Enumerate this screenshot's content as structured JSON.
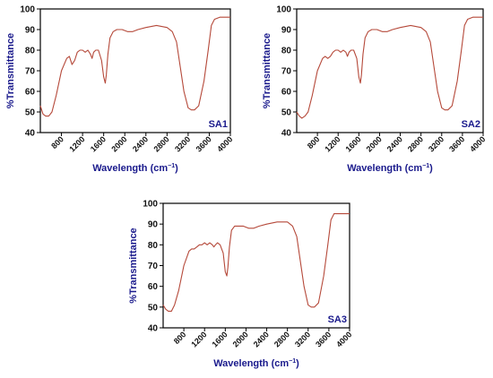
{
  "colors": {
    "line": "#b5493a",
    "label": "#1a1a8c",
    "axis": "#000000"
  },
  "chart_data": [
    {
      "type": "line",
      "label": "SA1",
      "xlabel": "Wavelength (cm",
      "xlabel_sup": "−1",
      "xlabel_close": ")",
      "ylabel": "%Transmittance",
      "xlim": [
        400,
        4000
      ],
      "ylim": [
        40,
        100
      ],
      "xticks": [
        800,
        1200,
        1600,
        2000,
        2400,
        2800,
        3200,
        3600,
        4000
      ],
      "yticks": [
        40,
        50,
        60,
        70,
        80,
        90,
        100
      ],
      "x": [
        400,
        450,
        500,
        560,
        620,
        700,
        800,
        900,
        950,
        1000,
        1050,
        1100,
        1150,
        1200,
        1250,
        1300,
        1350,
        1380,
        1410,
        1450,
        1500,
        1560,
        1600,
        1630,
        1650,
        1680,
        1720,
        1780,
        1850,
        1950,
        2050,
        2150,
        2250,
        2400,
        2600,
        2800,
        2900,
        2980,
        3050,
        3120,
        3200,
        3260,
        3320,
        3400,
        3500,
        3580,
        3640,
        3700,
        3800,
        3900,
        4000
      ],
      "y": [
        53,
        49,
        48,
        48,
        50,
        58,
        70,
        76,
        77,
        73,
        75,
        79,
        80,
        80,
        79,
        80,
        78,
        76,
        79,
        80,
        80,
        75,
        67,
        64,
        68,
        78,
        86,
        89,
        90,
        90,
        89,
        89,
        90,
        91,
        92,
        91,
        89,
        84,
        72,
        60,
        52,
        51,
        51,
        53,
        65,
        80,
        92,
        95,
        96,
        96,
        96
      ]
    },
    {
      "type": "line",
      "label": "SA2",
      "xlabel": "Wavelength (cm",
      "xlabel_sup": "−1",
      "xlabel_close": ")",
      "ylabel": "%Transmittance",
      "xlim": [
        400,
        4000
      ],
      "ylim": [
        40,
        100
      ],
      "xticks": [
        800,
        1200,
        1600,
        2000,
        2400,
        2800,
        3200,
        3600,
        4000
      ],
      "yticks": [
        40,
        50,
        60,
        70,
        80,
        90,
        100
      ],
      "x": [
        400,
        450,
        500,
        560,
        620,
        700,
        800,
        900,
        950,
        1000,
        1050,
        1100,
        1150,
        1200,
        1250,
        1300,
        1350,
        1380,
        1410,
        1450,
        1500,
        1560,
        1600,
        1630,
        1650,
        1680,
        1720,
        1780,
        1850,
        1950,
        2050,
        2150,
        2250,
        2400,
        2600,
        2800,
        2900,
        2980,
        3050,
        3120,
        3200,
        3260,
        3320,
        3400,
        3500,
        3580,
        3640,
        3700,
        3800,
        3900,
        4000
      ],
      "y": [
        50,
        48,
        47,
        48,
        50,
        58,
        70,
        76,
        77,
        76,
        77,
        79,
        80,
        80,
        79,
        80,
        79,
        77,
        79,
        80,
        80,
        76,
        67,
        64,
        68,
        78,
        86,
        89,
        90,
        90,
        89,
        89,
        90,
        91,
        92,
        91,
        89,
        84,
        72,
        60,
        52,
        51,
        51,
        53,
        65,
        80,
        92,
        95,
        96,
        96,
        96
      ]
    },
    {
      "type": "line",
      "label": "SA3",
      "xlabel": "Wavelength (cm",
      "xlabel_sup": "−1",
      "xlabel_close": ")",
      "ylabel": "%Transmittance",
      "xlim": [
        400,
        4000
      ],
      "ylim": [
        40,
        100
      ],
      "xticks": [
        800,
        1200,
        1600,
        2000,
        2400,
        2800,
        3200,
        3600,
        4000
      ],
      "yticks": [
        40,
        50,
        60,
        70,
        80,
        90,
        100
      ],
      "x": [
        400,
        450,
        500,
        560,
        620,
        700,
        800,
        900,
        950,
        1000,
        1050,
        1100,
        1150,
        1200,
        1250,
        1300,
        1350,
        1380,
        1410,
        1450,
        1500,
        1560,
        1600,
        1630,
        1650,
        1680,
        1720,
        1780,
        1850,
        1950,
        2050,
        2150,
        2250,
        2400,
        2600,
        2800,
        2900,
        2980,
        3050,
        3120,
        3200,
        3260,
        3320,
        3400,
        3500,
        3580,
        3640,
        3700,
        3800,
        3900,
        4000
      ],
      "y": [
        51,
        49,
        48,
        48,
        51,
        58,
        70,
        77,
        78,
        78,
        79,
        80,
        80,
        81,
        80,
        81,
        80,
        79,
        80,
        81,
        80,
        76,
        67,
        65,
        69,
        79,
        87,
        89,
        89,
        89,
        88,
        88,
        89,
        90,
        91,
        91,
        89,
        84,
        72,
        60,
        51,
        50,
        50,
        52,
        65,
        80,
        92,
        95,
        95,
        95,
        95
      ]
    }
  ]
}
